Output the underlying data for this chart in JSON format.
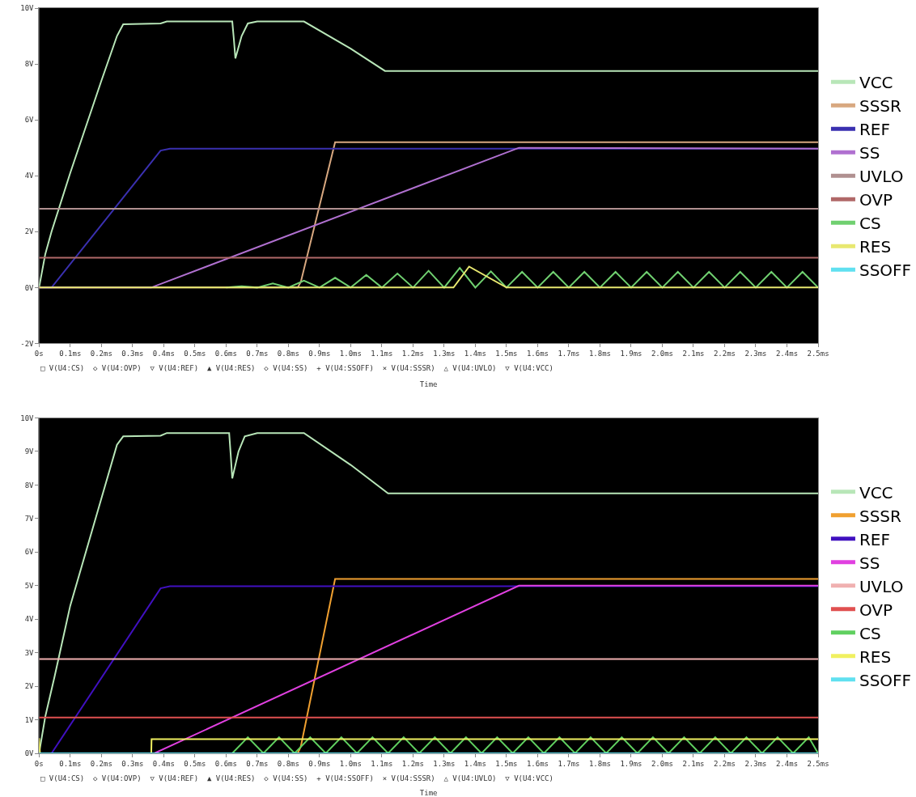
{
  "chart_data": [
    {
      "type": "line",
      "xlabel": "Time",
      "annotations": [
        "□ V(U4:CS)  ◇ V(U4:OVP)  ▽ V(U4:REF)  ▲ V(U4:RES)  ◇ V(U4:SS)  + V(U4:SSOFF)  × V(U4:SSSR)  △ V(U4:UVLO)  ▽ V(U4:VCC)"
      ],
      "legend": "right",
      "xlim": [
        0,
        2.5
      ],
      "xticks": [
        {
          "value": 0,
          "label": "0s"
        },
        {
          "value": 0.1,
          "label": "0.1ms"
        },
        {
          "value": 0.2,
          "label": "0.2ms"
        },
        {
          "value": 0.3,
          "label": "0.3ms"
        },
        {
          "value": 0.4,
          "label": "0.4ms"
        },
        {
          "value": 0.5,
          "label": "0.5ms"
        },
        {
          "value": 0.6,
          "label": "0.6ms"
        },
        {
          "value": 0.7,
          "label": "0.7ms"
        },
        {
          "value": 0.8,
          "label": "0.8ms"
        },
        {
          "value": 0.9,
          "label": "0.9ms"
        },
        {
          "value": 1.0,
          "label": "1.0ms"
        },
        {
          "value": 1.1,
          "label": "1.1ms"
        },
        {
          "value": 1.2,
          "label": "1.2ms"
        },
        {
          "value": 1.3,
          "label": "1.3ms"
        },
        {
          "value": 1.4,
          "label": "1.4ms"
        },
        {
          "value": 1.5,
          "label": "1.5ms"
        },
        {
          "value": 1.6,
          "label": "1.6ms"
        },
        {
          "value": 1.7,
          "label": "1.7ms"
        },
        {
          "value": 1.8,
          "label": "1.8ms"
        },
        {
          "value": 1.9,
          "label": "1.9ms"
        },
        {
          "value": 2.0,
          "label": "2.0ms"
        },
        {
          "value": 2.1,
          "label": "2.1ms"
        },
        {
          "value": 2.2,
          "label": "2.2ms"
        },
        {
          "value": 2.3,
          "label": "2.3ms"
        },
        {
          "value": 2.4,
          "label": "2.4ms"
        },
        {
          "value": 2.5,
          "label": "2.5ms"
        }
      ],
      "ylim": [
        -2,
        10
      ],
      "yticks": [
        {
          "value": -2,
          "label": "-2V"
        },
        {
          "value": 0,
          "label": "0V"
        },
        {
          "value": 2,
          "label": "2V"
        },
        {
          "value": 4,
          "label": "4V"
        },
        {
          "value": 6,
          "label": "6V"
        },
        {
          "value": 8,
          "label": "8V"
        },
        {
          "value": 10,
          "label": "10V"
        }
      ],
      "series": [
        {
          "name": "VCC",
          "color": "#b8e6b8",
          "x": [
            0,
            0.02,
            0.04,
            0.1,
            0.2,
            0.25,
            0.27,
            0.39,
            0.41,
            0.62,
            0.625,
            0.63,
            0.65,
            0.67,
            0.7,
            0.85,
            1.0,
            1.11,
            2.5
          ],
          "values": [
            0,
            1.2,
            2.0,
            4.1,
            7.4,
            9.0,
            9.42,
            9.45,
            9.52,
            9.52,
            8.9,
            8.2,
            9.0,
            9.45,
            9.52,
            9.52,
            8.55,
            7.75,
            7.75
          ]
        },
        {
          "name": "SSSR",
          "color": "#d8a880",
          "x": [
            0,
            0.83,
            0.84,
            0.95,
            2.5
          ],
          "values": [
            0,
            0,
            0.2,
            5.2,
            5.2
          ]
        },
        {
          "name": "REF",
          "color": "#3a30b0",
          "x": [
            0,
            0.04,
            0.39,
            0.42,
            2.5
          ],
          "values": [
            0,
            0,
            4.9,
            4.97,
            4.97
          ]
        },
        {
          "name": "SS",
          "color": "#b070d0",
          "x": [
            0,
            0.36,
            1.54,
            2.5
          ],
          "values": [
            0,
            0,
            5.0,
            4.97
          ]
        },
        {
          "name": "UVLO",
          "color": "#b09090",
          "x": [
            0,
            2.5
          ],
          "values": [
            2.82,
            2.82
          ]
        },
        {
          "name": "OVP",
          "color": "#b06868",
          "x": [
            0,
            2.5
          ],
          "values": [
            1.07,
            1.07
          ]
        },
        {
          "name": "CS",
          "color": "#70d070",
          "x": [
            0.6,
            0.65,
            0.7,
            0.75,
            0.8,
            0.85,
            0.9,
            0.95,
            1.0,
            1.05,
            1.1,
            1.15,
            1.2,
            1.25,
            1.3,
            1.35,
            1.4,
            1.45,
            1.5,
            1.55,
            1.6,
            1.65,
            1.7,
            1.75,
            1.8,
            1.85,
            1.9,
            1.95,
            2.0,
            2.05,
            2.1,
            2.15,
            2.2,
            2.25,
            2.3,
            2.35,
            2.4,
            2.45,
            2.5
          ],
          "values": [
            0,
            0.05,
            0,
            0.15,
            0,
            0.25,
            0,
            0.35,
            0,
            0.45,
            0,
            0.5,
            0,
            0.6,
            0,
            0.7,
            0,
            0.58,
            0,
            0.56,
            0,
            0.56,
            0,
            0.56,
            0,
            0.56,
            0,
            0.56,
            0,
            0.56,
            0,
            0.56,
            0,
            0.56,
            0,
            0.56,
            0,
            0.56,
            0
          ]
        },
        {
          "name": "RES",
          "color": "#e8e870",
          "x": [
            0,
            1.33,
            1.38,
            1.5,
            2.5
          ],
          "values": [
            0,
            0,
            0.75,
            0,
            0
          ]
        },
        {
          "name": "SSOFF",
          "color": "#60e0f0",
          "values": [
            null,
            null
          ]
        }
      ]
    },
    {
      "type": "line",
      "xlabel": "Time",
      "annotations": [
        "□ V(U4:CS)  ◇ V(U4:OVP)  ▽ V(U4:REF)  ▲ V(U4:RES)  ◇ V(U4:SS)  + V(U4:SSOFF)  × V(U4:SSSR)  △ V(U4:UVLO)  ▽ V(U4:VCC)"
      ],
      "legend": "right",
      "xlim": [
        0,
        2.5
      ],
      "xticks": [
        {
          "value": 0,
          "label": "0s"
        },
        {
          "value": 0.1,
          "label": "0.1ms"
        },
        {
          "value": 0.2,
          "label": "0.2ms"
        },
        {
          "value": 0.3,
          "label": "0.3ms"
        },
        {
          "value": 0.4,
          "label": "0.4ms"
        },
        {
          "value": 0.5,
          "label": "0.5ms"
        },
        {
          "value": 0.6,
          "label": "0.6ms"
        },
        {
          "value": 0.7,
          "label": "0.7ms"
        },
        {
          "value": 0.8,
          "label": "0.8ms"
        },
        {
          "value": 0.9,
          "label": "0.9ms"
        },
        {
          "value": 1.0,
          "label": "1.0ms"
        },
        {
          "value": 1.1,
          "label": "1.1ms"
        },
        {
          "value": 1.2,
          "label": "1.2ms"
        },
        {
          "value": 1.3,
          "label": "1.3ms"
        },
        {
          "value": 1.4,
          "label": "1.4ms"
        },
        {
          "value": 1.5,
          "label": "1.5ms"
        },
        {
          "value": 1.6,
          "label": "1.6ms"
        },
        {
          "value": 1.7,
          "label": "1.7ms"
        },
        {
          "value": 1.8,
          "label": "1.8ms"
        },
        {
          "value": 1.9,
          "label": "1.9ms"
        },
        {
          "value": 2.0,
          "label": "2.0ms"
        },
        {
          "value": 2.1,
          "label": "2.1ms"
        },
        {
          "value": 2.2,
          "label": "2.2ms"
        },
        {
          "value": 2.3,
          "label": "2.3ms"
        },
        {
          "value": 2.4,
          "label": "2.4ms"
        },
        {
          "value": 2.5,
          "label": "2.5ms"
        }
      ],
      "ylim": [
        0,
        10
      ],
      "yticks": [
        {
          "value": 0,
          "label": "0V"
        },
        {
          "value": 1,
          "label": "1V"
        },
        {
          "value": 2,
          "label": "2V"
        },
        {
          "value": 3,
          "label": "3V"
        },
        {
          "value": 4,
          "label": "4V"
        },
        {
          "value": 5,
          "label": "5V"
        },
        {
          "value": 6,
          "label": "6V"
        },
        {
          "value": 7,
          "label": "7V"
        },
        {
          "value": 8,
          "label": "8V"
        },
        {
          "value": 9,
          "label": "9V"
        },
        {
          "value": 10,
          "label": "10V"
        }
      ],
      "series": [
        {
          "name": "VCC",
          "color": "#b8e6b8",
          "x": [
            0,
            0.02,
            0.05,
            0.1,
            0.2,
            0.25,
            0.27,
            0.39,
            0.41,
            0.61,
            0.615,
            0.62,
            0.64,
            0.66,
            0.7,
            0.85,
            1.0,
            1.12,
            2.5
          ],
          "values": [
            0,
            1.1,
            2.3,
            4.4,
            7.6,
            9.2,
            9.45,
            9.47,
            9.55,
            9.55,
            8.9,
            8.2,
            9.0,
            9.45,
            9.55,
            9.55,
            8.6,
            7.75,
            7.75
          ]
        },
        {
          "name": "SSSR",
          "color": "#f0a030",
          "x": [
            0,
            0.83,
            0.84,
            0.95,
            2.5
          ],
          "values": [
            0,
            0,
            0.2,
            5.2,
            5.2
          ]
        },
        {
          "name": "REF",
          "color": "#4010c0",
          "x": [
            0,
            0.04,
            0.39,
            0.42,
            2.5
          ],
          "values": [
            0,
            0,
            4.92,
            4.98,
            4.98
          ]
        },
        {
          "name": "SS",
          "color": "#e040e0",
          "x": [
            0,
            0.37,
            1.54,
            2.5
          ],
          "values": [
            0,
            0,
            5.0,
            5.0
          ]
        },
        {
          "name": "UVLO",
          "color": "#f0b0b0",
          "x": [
            0,
            2.5
          ],
          "values": [
            2.81,
            2.81
          ]
        },
        {
          "name": "OVP",
          "color": "#e05050",
          "x": [
            0,
            2.5
          ],
          "values": [
            1.07,
            1.07
          ]
        },
        {
          "name": "CS",
          "color": "#60d060",
          "x": [
            0.62,
            0.67,
            0.72,
            0.77,
            0.82,
            0.87,
            0.92,
            0.97,
            1.02,
            1.07,
            1.12,
            1.17,
            1.22,
            1.27,
            1.32,
            1.37,
            1.42,
            1.47,
            1.52,
            1.57,
            1.62,
            1.67,
            1.72,
            1.77,
            1.82,
            1.87,
            1.92,
            1.97,
            2.02,
            2.07,
            2.12,
            2.17,
            2.22,
            2.27,
            2.32,
            2.37,
            2.42,
            2.47,
            2.5
          ],
          "values": [
            0,
            0.48,
            0,
            0.48,
            0,
            0.48,
            0,
            0.48,
            0,
            0.48,
            0,
            0.48,
            0,
            0.48,
            0,
            0.48,
            0,
            0.48,
            0,
            0.48,
            0,
            0.48,
            0,
            0.48,
            0,
            0.48,
            0,
            0.48,
            0,
            0.48,
            0,
            0.48,
            0,
            0.48,
            0,
            0.48,
            0,
            0.48,
            0
          ]
        },
        {
          "name": "RES",
          "color": "#f0f060",
          "x": [
            0,
            0.003,
            0.36,
            0.361,
            2.5
          ],
          "values": [
            0.45,
            0,
            0,
            0.42,
            0.42
          ]
        },
        {
          "name": "SSOFF",
          "color": "#60e0f0",
          "x": [
            0,
            2.5
          ],
          "values": [
            0,
            0
          ]
        }
      ]
    }
  ]
}
